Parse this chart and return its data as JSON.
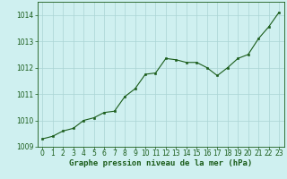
{
  "x": [
    0,
    1,
    2,
    3,
    4,
    5,
    6,
    7,
    8,
    9,
    10,
    11,
    12,
    13,
    14,
    15,
    16,
    17,
    18,
    19,
    20,
    21,
    22,
    23
  ],
  "y": [
    1009.3,
    1009.4,
    1009.6,
    1009.7,
    1010.0,
    1010.1,
    1010.3,
    1010.35,
    1010.9,
    1011.2,
    1011.75,
    1011.8,
    1012.35,
    1012.3,
    1012.2,
    1012.2,
    1012.0,
    1011.7,
    1012.0,
    1012.35,
    1012.5,
    1013.1,
    1013.55,
    1014.1
  ],
  "ylim": [
    1009.0,
    1014.5
  ],
  "xlim": [
    -0.5,
    23.5
  ],
  "yticks": [
    1009,
    1010,
    1011,
    1012,
    1013,
    1014
  ],
  "xticks": [
    0,
    1,
    2,
    3,
    4,
    5,
    6,
    7,
    8,
    9,
    10,
    11,
    12,
    13,
    14,
    15,
    16,
    17,
    18,
    19,
    20,
    21,
    22,
    23
  ],
  "line_color": "#1a5c1a",
  "marker": "s",
  "markersize": 2.0,
  "linewidth": 0.8,
  "background_color": "#cff0f0",
  "grid_color": "#aad4d4",
  "xlabel": "Graphe pression niveau de la mer (hPa)",
  "xlabel_fontsize": 6.5,
  "xlabel_color": "#1a5c1a",
  "tick_fontsize": 5.5,
  "tick_color": "#1a5c1a",
  "spine_color": "#1a5c1a"
}
